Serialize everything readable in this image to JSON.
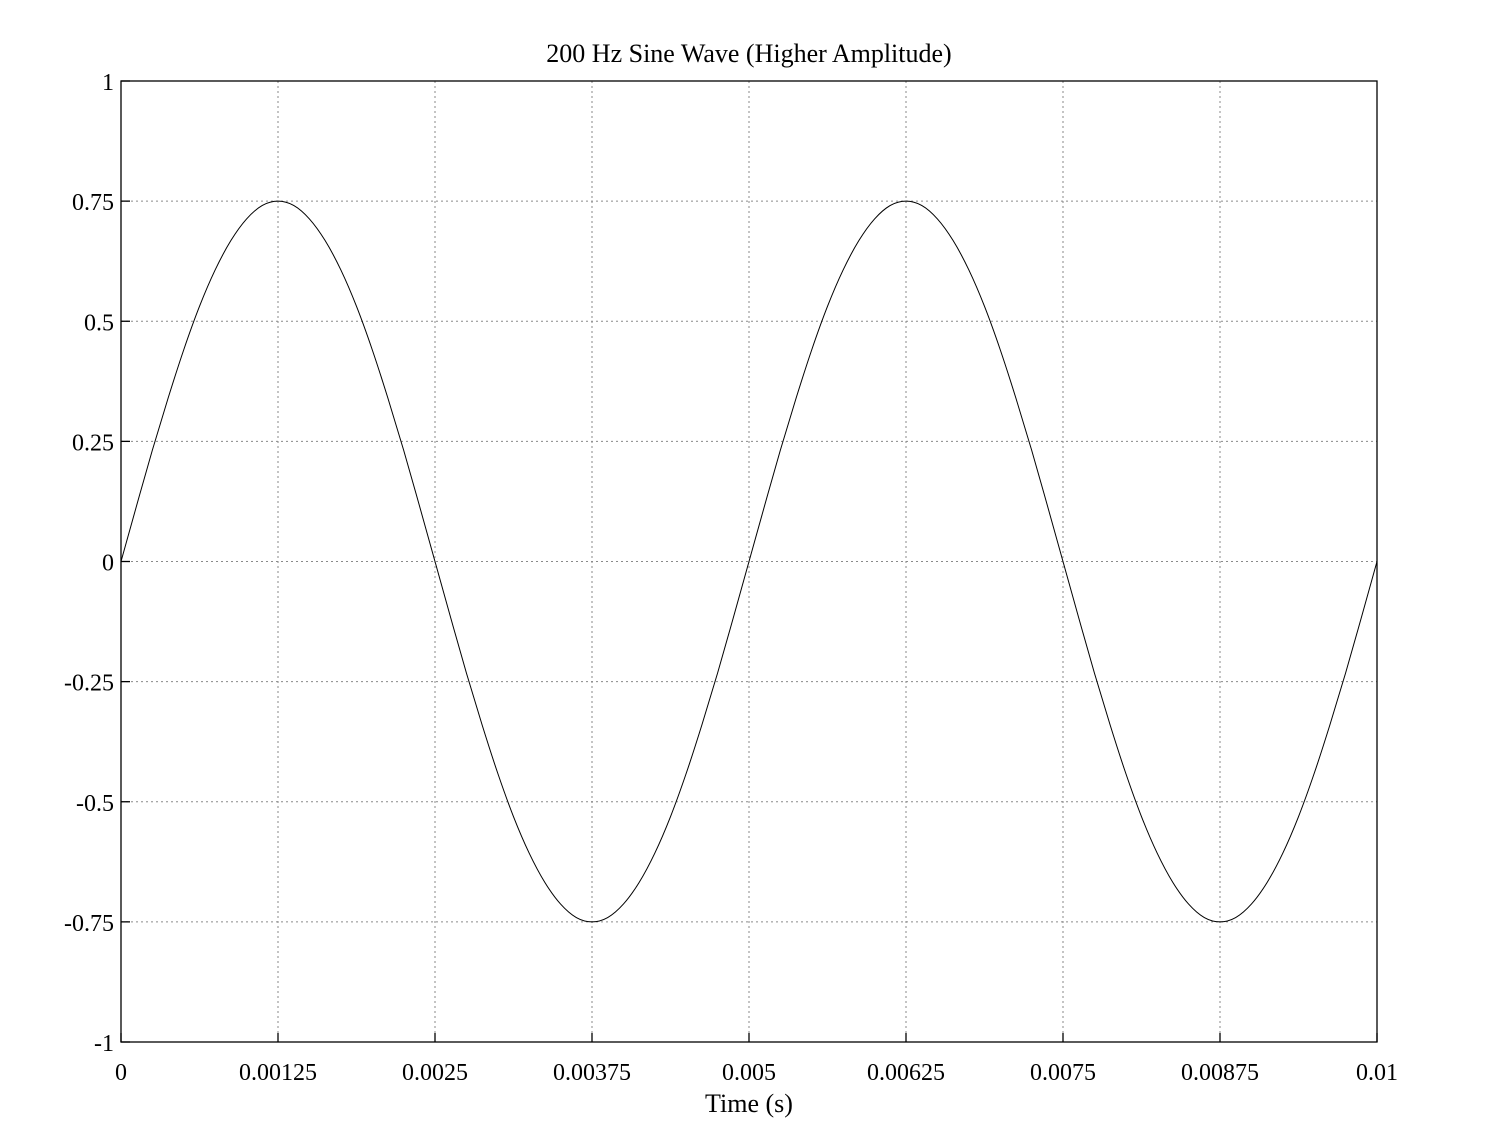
{
  "chart_data": {
    "type": "line",
    "title": "200 Hz Sine Wave (Higher Amplitude)",
    "xlabel": "Time (s)",
    "ylabel": "",
    "xlim": [
      0,
      0.01
    ],
    "ylim": [
      -1,
      1
    ],
    "x_ticks": [
      0,
      0.00125,
      0.0025,
      0.00375,
      0.005,
      0.00625,
      0.0075,
      0.00875,
      0.01
    ],
    "x_tick_labels": [
      "0",
      "0.00125",
      "0.0025",
      "0.00375",
      "0.005",
      "0.00625",
      "0.0075",
      "0.00875",
      "0.01"
    ],
    "y_ticks": [
      1,
      0.75,
      0.5,
      0.25,
      0,
      -0.25,
      -0.5,
      -0.75,
      -1
    ],
    "y_tick_labels": [
      "1",
      "0.75",
      "0.5",
      "0.25",
      "0",
      "-0.25",
      "-0.5",
      "-0.75",
      "-1"
    ],
    "grid": true,
    "legend": "none",
    "series": [
      {
        "color": "#000000",
        "x": [
          0,
          0.000125,
          0.00025,
          0.000375,
          0.0005,
          0.000625,
          0.00075,
          0.000875,
          0.001,
          0.001125,
          0.00125,
          0.001375,
          0.0015,
          0.001625,
          0.00175,
          0.001875,
          0.002,
          0.002125,
          0.00225,
          0.002375,
          0.0025,
          0.002625,
          0.00275,
          0.002875,
          0.003,
          0.003125,
          0.00325,
          0.003375,
          0.0035,
          0.003625,
          0.00375,
          0.003875,
          0.004,
          0.004125,
          0.00425,
          0.004375,
          0.0045,
          0.004625,
          0.00475,
          0.004875,
          0.005,
          0.005125,
          0.00525,
          0.005375,
          0.0055,
          0.005625,
          0.00575,
          0.005875,
          0.006,
          0.006125,
          0.00625,
          0.006375,
          0.0065,
          0.006625,
          0.00675,
          0.006875,
          0.007,
          0.007125,
          0.00725,
          0.007375,
          0.0075,
          0.007625,
          0.00775,
          0.007875,
          0.008,
          0.008125,
          0.00825,
          0.008375,
          0.0085,
          0.008625,
          0.00875,
          0.008875,
          0.009,
          0.009125,
          0.00925,
          0.009375,
          0.0095,
          0.009625,
          0.00975,
          0.009875,
          0.01
        ],
        "y": [
          0,
          0.117,
          0.232,
          0.34,
          0.441,
          0.531,
          0.607,
          0.668,
          0.713,
          0.741,
          0.75,
          0.741,
          0.713,
          0.668,
          0.607,
          0.531,
          0.441,
          0.34,
          0.232,
          0.117,
          0,
          -0.117,
          -0.232,
          -0.34,
          -0.441,
          -0.531,
          -0.607,
          -0.668,
          -0.713,
          -0.741,
          -0.75,
          -0.741,
          -0.713,
          -0.668,
          -0.607,
          -0.531,
          -0.441,
          -0.34,
          -0.232,
          -0.117,
          0,
          0.117,
          0.232,
          0.34,
          0.441,
          0.531,
          0.607,
          0.668,
          0.713,
          0.741,
          0.75,
          0.741,
          0.713,
          0.668,
          0.607,
          0.531,
          0.441,
          0.34,
          0.232,
          0.117,
          0,
          -0.117,
          -0.232,
          -0.34,
          -0.441,
          -0.531,
          -0.607,
          -0.668,
          -0.713,
          -0.741,
          -0.75,
          -0.741,
          -0.713,
          -0.668,
          -0.607,
          -0.531,
          -0.441,
          -0.34,
          -0.232,
          -0.117,
          0
        ]
      }
    ]
  }
}
